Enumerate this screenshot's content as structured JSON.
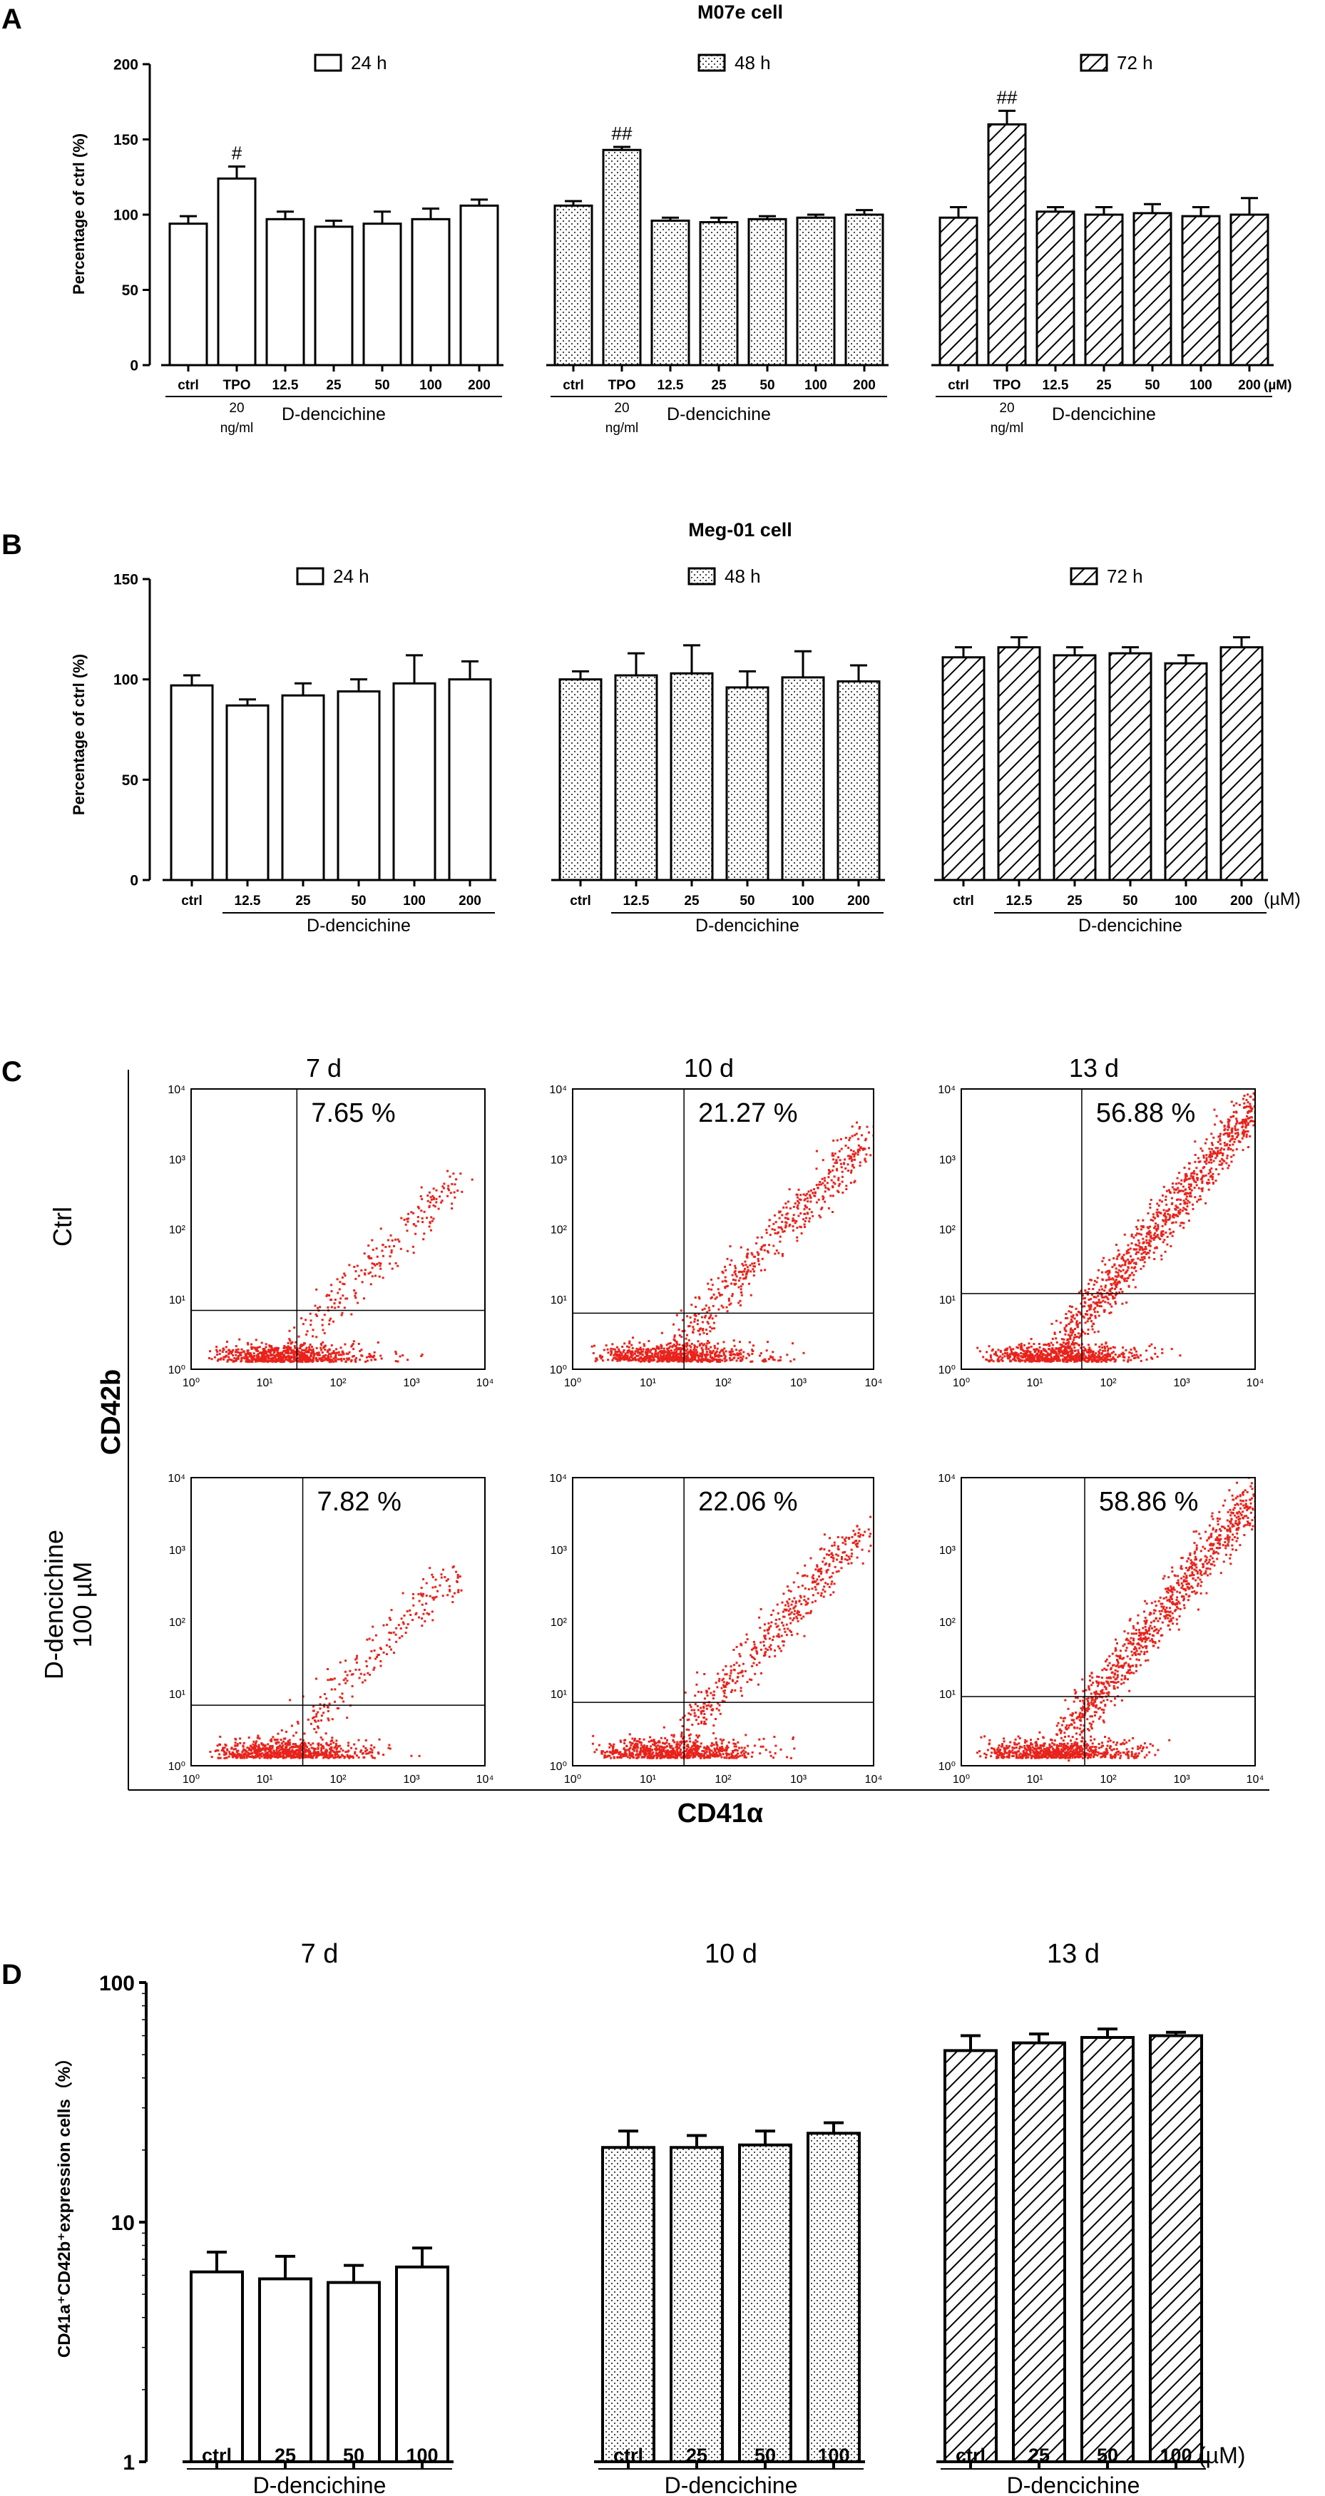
{
  "panel_labels": [
    "A",
    "B",
    "C",
    "D"
  ],
  "chart_data": [
    {
      "id": "A",
      "type": "bar",
      "title": "M07e cell",
      "ylabel": "Percentage of ctrl (%)",
      "ylim": [
        0,
        200
      ],
      "yticks": [
        "0",
        "50",
        "100",
        "150",
        "200"
      ],
      "categories": [
        "ctrl",
        "TPO",
        "12.5",
        "25",
        "50",
        "100",
        "200"
      ],
      "tpo_sub": "20",
      "tpo_sub2": "ng/ml",
      "group_label": "D-dencichine",
      "unit": "(µM)",
      "series": [
        {
          "name": "24 h",
          "pattern": "open",
          "values": [
            94,
            124,
            97,
            92,
            94,
            97,
            106
          ],
          "errors": [
            5,
            8,
            5,
            4,
            8,
            7,
            4
          ],
          "marks": [
            "",
            "#",
            "",
            "",
            "",
            "",
            ""
          ]
        },
        {
          "name": "48 h",
          "pattern": "dots",
          "values": [
            106,
            143,
            96,
            95,
            97,
            98,
            100
          ],
          "errors": [
            3,
            2,
            2,
            3,
            2,
            2,
            3
          ],
          "marks": [
            "",
            "##",
            "",
            "",
            "",
            "",
            ""
          ]
        },
        {
          "name": "72 h",
          "pattern": "hatch",
          "values": [
            98,
            160,
            102,
            100,
            101,
            99,
            100
          ],
          "errors": [
            7,
            9,
            3,
            5,
            6,
            6,
            11
          ],
          "marks": [
            "",
            "##",
            "",
            "",
            "",
            "",
            ""
          ]
        }
      ]
    },
    {
      "id": "B",
      "type": "bar",
      "title": "Meg-01 cell",
      "ylabel": "Percentage of ctrl (%)",
      "ylim": [
        0,
        150
      ],
      "yticks": [
        "0",
        "50",
        "100",
        "150"
      ],
      "categories": [
        "ctrl",
        "12.5",
        "25",
        "50",
        "100",
        "200"
      ],
      "group_label": "D-dencichine",
      "unit": "(µM)",
      "series": [
        {
          "name": "24 h",
          "pattern": "open",
          "values": [
            97,
            87,
            92,
            94,
            98,
            100
          ],
          "errors": [
            5,
            3,
            6,
            6,
            14,
            9
          ]
        },
        {
          "name": "48 h",
          "pattern": "dots",
          "values": [
            100,
            102,
            103,
            96,
            101,
            99
          ],
          "errors": [
            4,
            11,
            14,
            8,
            13,
            8
          ]
        },
        {
          "name": "72 h",
          "pattern": "hatch",
          "values": [
            111,
            116,
            112,
            113,
            108,
            116
          ],
          "errors": [
            5,
            5,
            4,
            3,
            4,
            5
          ]
        }
      ]
    },
    {
      "id": "C",
      "type": "scatter",
      "title": "",
      "xlabel": "CD41α",
      "ylabel": "CD42b",
      "axis_ticks": [
        "10⁰",
        "10¹",
        "10²",
        "10³",
        "10⁴"
      ],
      "columns": [
        "7 d",
        "10 d",
        "13 d"
      ],
      "rows": [
        {
          "label": "Ctrl",
          "label2": ""
        },
        {
          "label": "D-dencichine",
          "label2": "100 µM"
        }
      ],
      "percentages": [
        [
          "7.65 %",
          "21.27 %",
          "56.88 %"
        ],
        [
          "7.82 %",
          "22.06 %",
          "58.86 %"
        ]
      ]
    },
    {
      "id": "D",
      "type": "bar",
      "scale": "log",
      "ylim": [
        1,
        100
      ],
      "yticks": [
        "1",
        "10",
        "100"
      ],
      "ylabel": "CD41a⁺CD42b⁺expression cells（%）",
      "categories": [
        "ctrl",
        "25",
        "50",
        "100"
      ],
      "group_label": "D-dencichine",
      "unit": "(µM)",
      "series": [
        {
          "name": "7 d",
          "pattern": "open",
          "values": [
            6.2,
            5.8,
            5.6,
            6.5
          ],
          "errors": [
            1.3,
            1.4,
            1.0,
            1.3
          ]
        },
        {
          "name": "10 d",
          "pattern": "dots",
          "values": [
            20.5,
            20.5,
            21.0,
            23.5
          ],
          "errors": [
            3.5,
            2.5,
            3.0,
            2.5
          ]
        },
        {
          "name": "13 d",
          "pattern": "hatch",
          "values": [
            52,
            56,
            59,
            60
          ],
          "errors": [
            8,
            5,
            5,
            2
          ]
        }
      ]
    }
  ]
}
